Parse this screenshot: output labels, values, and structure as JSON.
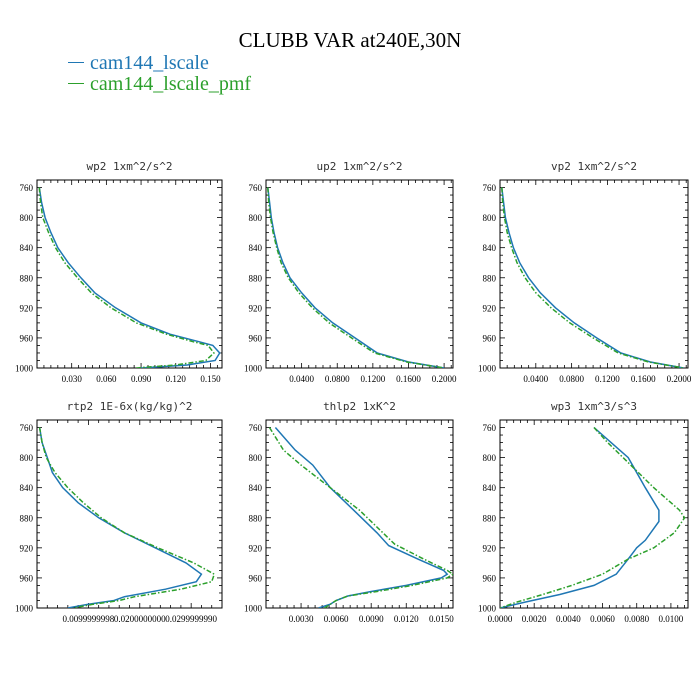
{
  "title": "CLUBB VAR at240E,30N",
  "legend": [
    {
      "label": "cam144_lscale",
      "color": "#1f77b4"
    },
    {
      "label": "cam144_lscale_pmf",
      "color": "#2ca02c"
    }
  ],
  "chart_data": [
    {
      "type": "line",
      "title": "wp2  1xm^2/s^2",
      "ylim": [
        1000,
        750
      ],
      "yticks": [
        "760",
        "800",
        "840",
        "880",
        "920",
        "960",
        "1000"
      ],
      "yticks_values": [
        760,
        800,
        840,
        880,
        920,
        960,
        1000
      ],
      "xlim": [
        0,
        0.16
      ],
      "xticks": [
        "0.030",
        "0.060",
        "0.090",
        "0.120",
        "0.150"
      ],
      "xticks_values": [
        0.03,
        0.06,
        0.09,
        0.12,
        0.15
      ],
      "series": [
        {
          "name": "cam144_lscale",
          "color": "#1f77b4",
          "dashed": false,
          "points": [
            [
              0.002,
              760
            ],
            [
              0.004,
              780
            ],
            [
              0.007,
              800
            ],
            [
              0.012,
              820
            ],
            [
              0.018,
              840
            ],
            [
              0.027,
              860
            ],
            [
              0.038,
              880
            ],
            [
              0.05,
              900
            ],
            [
              0.068,
              920
            ],
            [
              0.09,
              940
            ],
            [
              0.115,
              955
            ],
            [
              0.14,
              965
            ],
            [
              0.152,
              970
            ],
            [
              0.158,
              980
            ],
            [
              0.154,
              990
            ],
            [
              0.13,
              996
            ],
            [
              0.09,
              1000
            ]
          ]
        },
        {
          "name": "cam144_lscale_pmf",
          "color": "#2ca02c",
          "dashed": true,
          "points": [
            [
              0.002,
              760
            ],
            [
              0.003,
              780
            ],
            [
              0.005,
              800
            ],
            [
              0.01,
              820
            ],
            [
              0.016,
              840
            ],
            [
              0.024,
              860
            ],
            [
              0.035,
              880
            ],
            [
              0.047,
              900
            ],
            [
              0.064,
              920
            ],
            [
              0.086,
              940
            ],
            [
              0.112,
              955
            ],
            [
              0.135,
              965
            ],
            [
              0.148,
              970
            ],
            [
              0.153,
              980
            ],
            [
              0.146,
              990
            ],
            [
              0.12,
              996
            ],
            [
              0.085,
              1000
            ]
          ]
        }
      ]
    },
    {
      "type": "line",
      "title": "up2  1xm^2/s^2",
      "ylim": [
        1000,
        750
      ],
      "yticks": [
        "760",
        "800",
        "840",
        "880",
        "920",
        "960",
        "1000"
      ],
      "yticks_values": [
        760,
        800,
        840,
        880,
        920,
        960,
        1000
      ],
      "xlim": [
        0,
        0.21
      ],
      "xticks": [
        "0.0400",
        "0.0800",
        "0.1200",
        "0.1600",
        "0.2000"
      ],
      "xticks_values": [
        0.04,
        0.08,
        0.12,
        0.16,
        0.2
      ],
      "series": [
        {
          "name": "cam144_lscale",
          "color": "#1f77b4",
          "dashed": false,
          "points": [
            [
              0.002,
              760
            ],
            [
              0.004,
              780
            ],
            [
              0.006,
              800
            ],
            [
              0.009,
              820
            ],
            [
              0.013,
              840
            ],
            [
              0.019,
              860
            ],
            [
              0.027,
              880
            ],
            [
              0.04,
              900
            ],
            [
              0.055,
              920
            ],
            [
              0.075,
              940
            ],
            [
              0.1,
              960
            ],
            [
              0.125,
              980
            ],
            [
              0.16,
              992
            ],
            [
              0.2,
              1000
            ]
          ]
        },
        {
          "name": "cam144_lscale_pmf",
          "color": "#2ca02c",
          "dashed": true,
          "points": [
            [
              0.002,
              760
            ],
            [
              0.003,
              780
            ],
            [
              0.005,
              800
            ],
            [
              0.008,
              820
            ],
            [
              0.012,
              840
            ],
            [
              0.017,
              860
            ],
            [
              0.025,
              880
            ],
            [
              0.037,
              900
            ],
            [
              0.052,
              920
            ],
            [
              0.071,
              940
            ],
            [
              0.096,
              960
            ],
            [
              0.122,
              980
            ],
            [
              0.158,
              992
            ],
            [
              0.2,
              1000
            ]
          ]
        }
      ]
    },
    {
      "type": "line",
      "title": "vp2  1xm^2/s^2",
      "ylim": [
        1000,
        750
      ],
      "yticks": [
        "760",
        "800",
        "840",
        "880",
        "920",
        "960",
        "1000"
      ],
      "yticks_values": [
        760,
        800,
        840,
        880,
        920,
        960,
        1000
      ],
      "xlim": [
        0,
        0.21
      ],
      "xticks": [
        "0.0400",
        "0.0800",
        "0.1200",
        "0.1600",
        "0.2000"
      ],
      "xticks_values": [
        0.04,
        0.08,
        0.12,
        0.16,
        0.2
      ],
      "series": [
        {
          "name": "cam144_lscale",
          "color": "#1f77b4",
          "dashed": false,
          "points": [
            [
              0.002,
              760
            ],
            [
              0.004,
              780
            ],
            [
              0.006,
              800
            ],
            [
              0.01,
              820
            ],
            [
              0.015,
              840
            ],
            [
              0.022,
              860
            ],
            [
              0.032,
              880
            ],
            [
              0.045,
              900
            ],
            [
              0.062,
              920
            ],
            [
              0.083,
              940
            ],
            [
              0.108,
              960
            ],
            [
              0.135,
              980
            ],
            [
              0.168,
              992
            ],
            [
              0.205,
              1000
            ]
          ]
        },
        {
          "name": "cam144_lscale_pmf",
          "color": "#2ca02c",
          "dashed": true,
          "points": [
            [
              0.002,
              760
            ],
            [
              0.003,
              780
            ],
            [
              0.005,
              800
            ],
            [
              0.008,
              820
            ],
            [
              0.013,
              840
            ],
            [
              0.019,
              860
            ],
            [
              0.028,
              880
            ],
            [
              0.04,
              900
            ],
            [
              0.057,
              920
            ],
            [
              0.078,
              940
            ],
            [
              0.104,
              960
            ],
            [
              0.132,
              980
            ],
            [
              0.166,
              992
            ],
            [
              0.205,
              1000
            ]
          ]
        }
      ]
    },
    {
      "type": "line",
      "title": "rtp2  1E-6x(kg/kg)^2",
      "ylim": [
        1000,
        750
      ],
      "yticks": [
        "760",
        "800",
        "840",
        "880",
        "920",
        "960",
        "1000"
      ],
      "yticks_values": [
        760,
        800,
        840,
        880,
        920,
        960,
        1000
      ],
      "xlim": [
        0,
        0.036
      ],
      "xticks": [
        "0.0099999998",
        "0.0200000000",
        "0.0299999990"
      ],
      "xticks_values": [
        0.01,
        0.02,
        0.03
      ],
      "series": [
        {
          "name": "cam144_lscale",
          "color": "#1f77b4",
          "dashed": false,
          "points": [
            [
              0.0005,
              760
            ],
            [
              0.001,
              780
            ],
            [
              0.002,
              800
            ],
            [
              0.003,
              820
            ],
            [
              0.005,
              840
            ],
            [
              0.008,
              860
            ],
            [
              0.012,
              880
            ],
            [
              0.017,
              900
            ],
            [
              0.023,
              920
            ],
            [
              0.029,
              940
            ],
            [
              0.032,
              955
            ],
            [
              0.031,
              965
            ],
            [
              0.025,
              975
            ],
            [
              0.017,
              985
            ],
            [
              0.015,
              990
            ],
            [
              0.01,
              995
            ],
            [
              0.006,
              1000
            ]
          ]
        },
        {
          "name": "cam144_lscale_pmf",
          "color": "#2ca02c",
          "dashed": true,
          "points": [
            [
              0.0005,
              760
            ],
            [
              0.001,
              780
            ],
            [
              0.0018,
              800
            ],
            [
              0.0035,
              820
            ],
            [
              0.006,
              840
            ],
            [
              0.009,
              860
            ],
            [
              0.0125,
              880
            ],
            [
              0.017,
              900
            ],
            [
              0.0235,
              920
            ],
            [
              0.0305,
              940
            ],
            [
              0.0345,
              955
            ],
            [
              0.034,
              965
            ],
            [
              0.028,
              975
            ],
            [
              0.019,
              985
            ],
            [
              0.016,
              990
            ],
            [
              0.011,
              995
            ],
            [
              0.007,
              1000
            ]
          ]
        }
      ]
    },
    {
      "type": "line",
      "title": "thlp2  1xK^2",
      "ylim": [
        1000,
        750
      ],
      "yticks": [
        "760",
        "800",
        "840",
        "880",
        "920",
        "960",
        "1000"
      ],
      "yticks_values": [
        760,
        800,
        840,
        880,
        920,
        960,
        1000
      ],
      "xlim": [
        0,
        0.016
      ],
      "xticks": [
        "0.0030",
        "0.0060",
        "0.0090",
        "0.0120",
        "0.0150"
      ],
      "xticks_values": [
        0.003,
        0.006,
        0.009,
        0.012,
        0.015
      ],
      "series": [
        {
          "name": "cam144_lscale",
          "color": "#1f77b4",
          "dashed": false,
          "points": [
            [
              0.0008,
              760
            ],
            [
              0.0025,
              790
            ],
            [
              0.004,
              810
            ],
            [
              0.0055,
              840
            ],
            [
              0.0075,
              870
            ],
            [
              0.0095,
              900
            ],
            [
              0.0105,
              917
            ],
            [
              0.013,
              935
            ],
            [
              0.0152,
              950
            ],
            [
              0.0155,
              955
            ],
            [
              0.015,
              960
            ],
            [
              0.012,
              970
            ],
            [
              0.009,
              978
            ],
            [
              0.007,
              984
            ],
            [
              0.006,
              990
            ],
            [
              0.0055,
              995
            ],
            [
              0.0045,
              1000
            ]
          ]
        },
        {
          "name": "cam144_lscale_pmf",
          "color": "#2ca02c",
          "dashed": true,
          "points": [
            [
              0.0003,
              760
            ],
            [
              0.0015,
              790
            ],
            [
              0.003,
              810
            ],
            [
              0.0055,
              840
            ],
            [
              0.008,
              870
            ],
            [
              0.01,
              900
            ],
            [
              0.011,
              915
            ],
            [
              0.0135,
              935
            ],
            [
              0.0155,
              950
            ],
            [
              0.016,
              955
            ],
            [
              0.0155,
              960
            ],
            [
              0.0125,
              970
            ],
            [
              0.0095,
              978
            ],
            [
              0.007,
              984
            ],
            [
              0.006,
              990
            ],
            [
              0.0055,
              995
            ],
            [
              0.005,
              1000
            ]
          ]
        }
      ]
    },
    {
      "type": "line",
      "title": "wp3  1xm^3/s^3",
      "ylim": [
        1000,
        750
      ],
      "yticks": [
        "760",
        "800",
        "840",
        "880",
        "920",
        "960",
        "1000"
      ],
      "yticks_values": [
        760,
        800,
        840,
        880,
        920,
        960,
        1000
      ],
      "xlim": [
        0,
        0.011
      ],
      "xticks": [
        "0.0000",
        "0.0020",
        "0.0040",
        "0.0060",
        "0.0080",
        "0.0100"
      ],
      "xticks_values": [
        0,
        0.002,
        0.004,
        0.006,
        0.008,
        0.01
      ],
      "series": [
        {
          "name": "cam144_lscale",
          "color": "#1f77b4",
          "dashed": false,
          "points": [
            [
              0.0055,
              760
            ],
            [
              0.0065,
              780
            ],
            [
              0.0075,
              800
            ],
            [
              0.0085,
              840
            ],
            [
              0.0093,
              870
            ],
            [
              0.0093,
              885
            ],
            [
              0.0085,
              910
            ],
            [
              0.008,
              920
            ],
            [
              0.0075,
              935
            ],
            [
              0.0068,
              955
            ],
            [
              0.0055,
              970
            ],
            [
              0.0035,
              982
            ],
            [
              0.0015,
              992
            ],
            [
              0,
              1000
            ]
          ]
        },
        {
          "name": "cam144_lscale_pmf",
          "color": "#2ca02c",
          "dashed": true,
          "points": [
            [
              0.0055,
              760
            ],
            [
              0.0063,
              780
            ],
            [
              0.0072,
              800
            ],
            [
              0.009,
              840
            ],
            [
              0.0105,
              870
            ],
            [
              0.0108,
              880
            ],
            [
              0.0102,
              900
            ],
            [
              0.009,
              920
            ],
            [
              0.0075,
              935
            ],
            [
              0.006,
              955
            ],
            [
              0.0042,
              970
            ],
            [
              0.0025,
              982
            ],
            [
              0.001,
              992
            ],
            [
              0,
              1000
            ]
          ]
        }
      ]
    }
  ]
}
